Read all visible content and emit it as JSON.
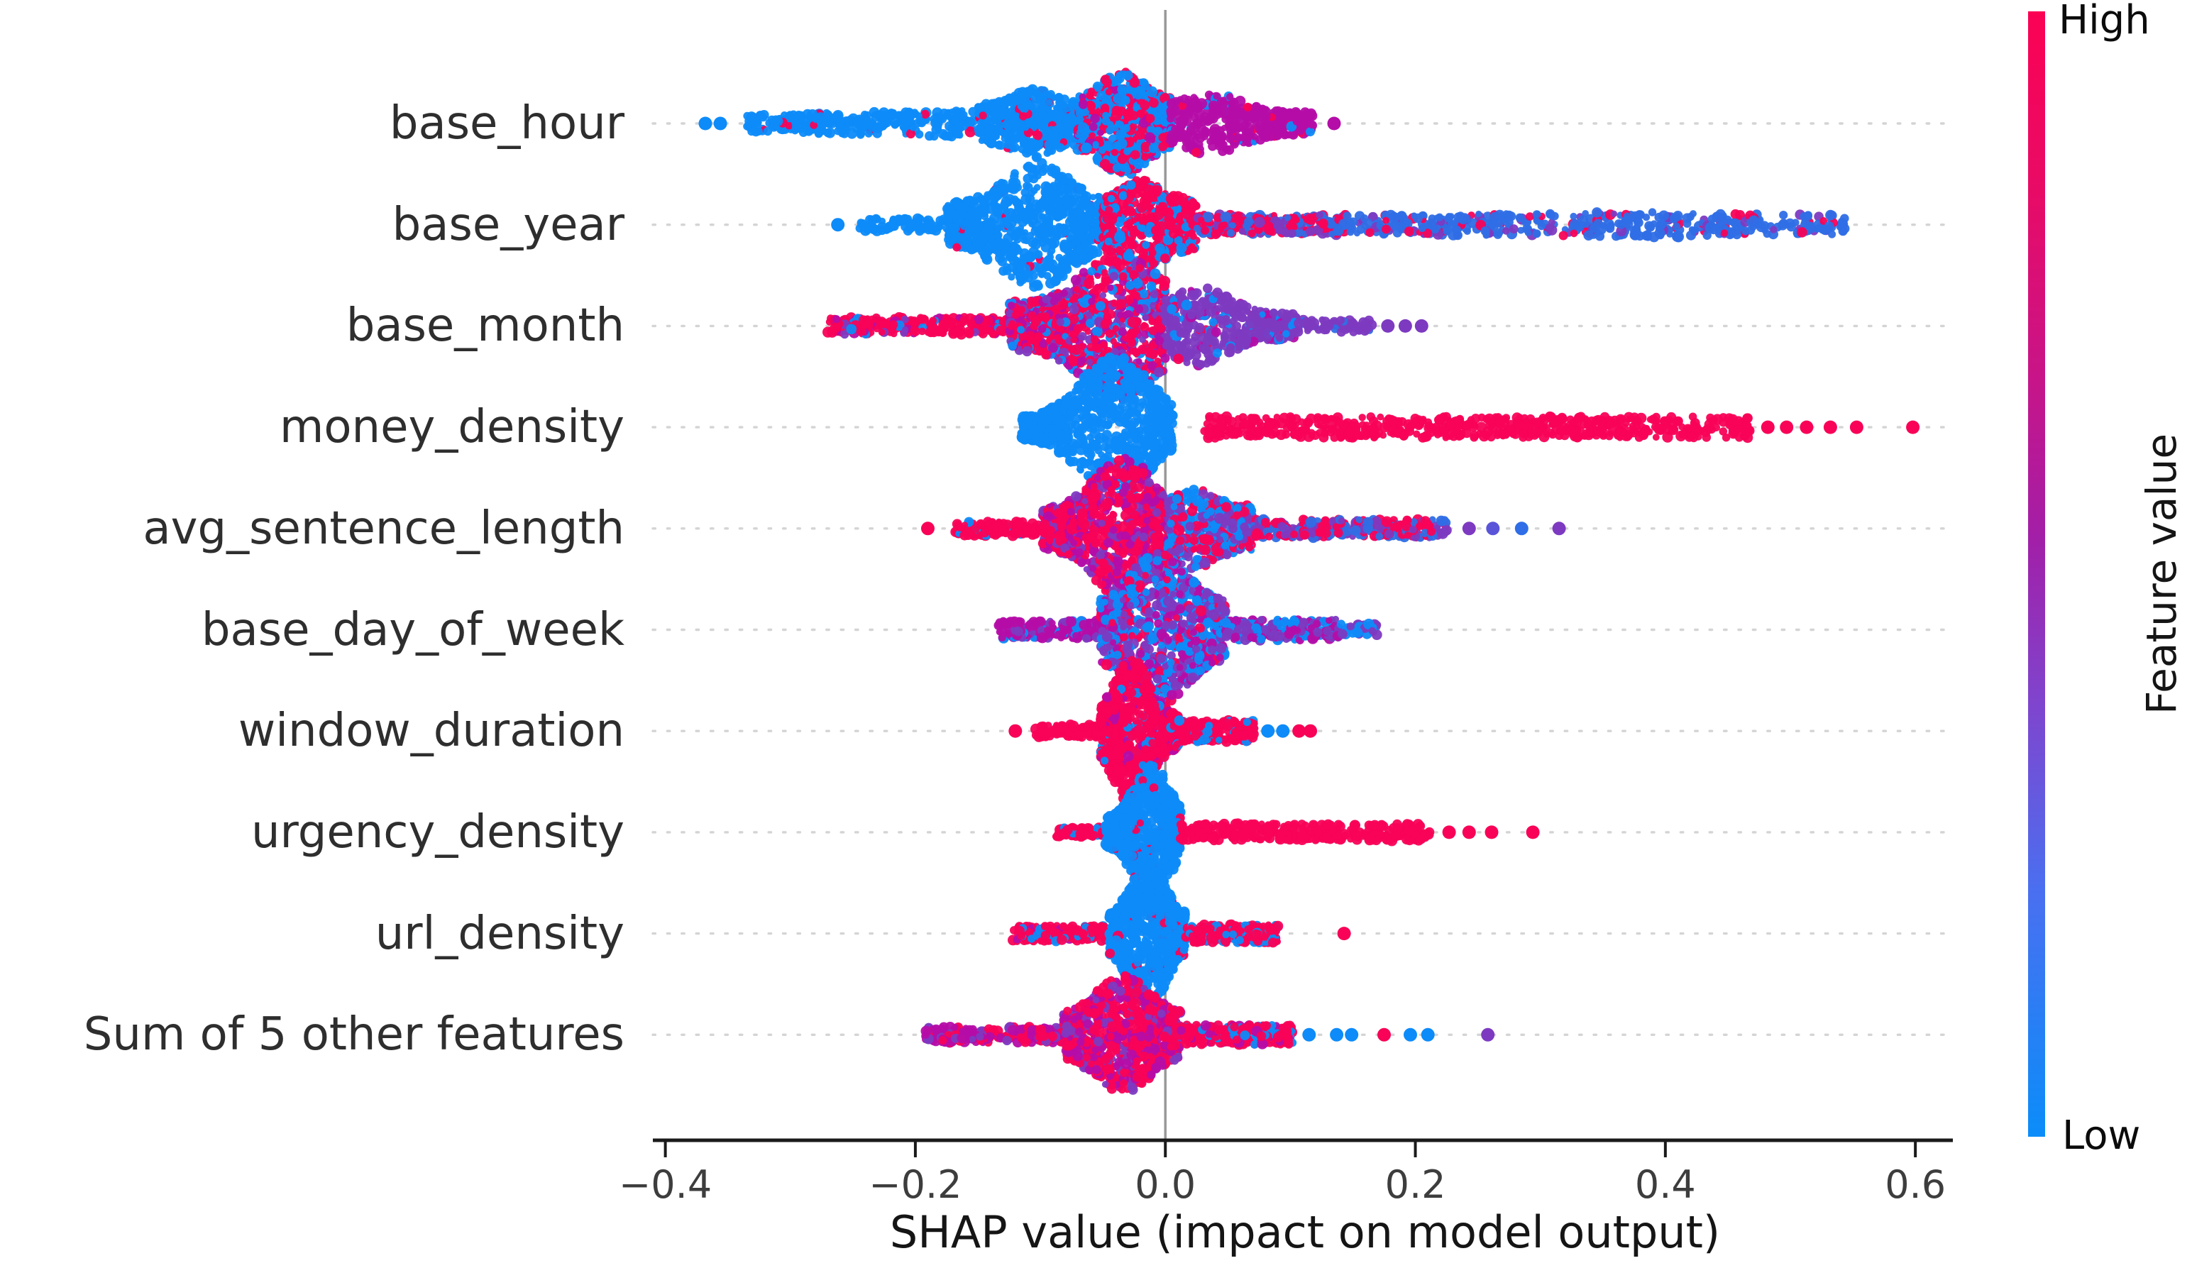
{
  "chart_data": {
    "type": "beeswarm",
    "variant": "shap-summary-plot",
    "title": "",
    "xlabel": "SHAP value (impact on model output)",
    "xlim": [
      -0.41,
      0.63
    ],
    "x_ticks": [
      -0.4,
      -0.2,
      0.0,
      0.2,
      0.4,
      0.6
    ],
    "x_tick_labels": [
      "−0.4",
      "−0.2",
      "0.0",
      "0.2",
      "0.4",
      "0.6"
    ],
    "zero_reference_line": 0.0,
    "grid": "dotted-horizontal",
    "legend_position": "colorbar-right",
    "colorbar": {
      "high_label": "High",
      "low_label": "Low",
      "title": "Feature value",
      "gradient": [
        [
          "0%",
          "#fb0254"
        ],
        [
          "16%",
          "#e80b66"
        ],
        [
          "32%",
          "#c91487"
        ],
        [
          "47%",
          "#a21fa8"
        ],
        [
          "62%",
          "#7e46cf"
        ],
        [
          "78%",
          "#4a6ff0"
        ],
        [
          "100%",
          "#0b8df9"
        ]
      ]
    },
    "palette": {
      "blue": "#0d8bf9",
      "royal": "#2f6ee6",
      "slate": "#5a55d8",
      "violet": "#7d3ac1",
      "magenta": "#b50da8",
      "red": "#f80357"
    },
    "grid_color": "#d4d4d4",
    "zero_line_color": "#999999",
    "axis_color": "#1a1a1a",
    "features": [
      {
        "name": "base_hour",
        "shap_range": [
          -0.37,
          0.14
        ],
        "segments": [
          {
            "from": -0.335,
            "to": -0.15,
            "base": 12,
            "base_end": 20,
            "n": 300,
            "colors": {
              "blue": 0.98,
              "red": 0.02
            }
          },
          {
            "from": -0.15,
            "to": -0.07,
            "base": 26,
            "peak": -0.105,
            "max": 48,
            "n": 450,
            "colors": {
              "blue": 0.93,
              "red": 0.07
            }
          },
          {
            "from": -0.07,
            "to": 0.004,
            "base": 34,
            "peak": -0.034,
            "max": 74,
            "n": 650,
            "colors": {
              "blue": 0.52,
              "red": 0.42,
              "magenta": 0.06
            }
          },
          {
            "from": 0.004,
            "to": 0.118,
            "base": 16,
            "peak": 0.035,
            "max": 44,
            "n": 420,
            "colors": {
              "magenta": 0.93,
              "blue": 0.03,
              "red": 0.04
            }
          }
        ],
        "dots": [
          {
            "x": -0.368,
            "color": "blue"
          },
          {
            "x": -0.356,
            "color": "blue"
          },
          {
            "x": 0.135,
            "color": "magenta"
          }
        ]
      },
      {
        "name": "base_year",
        "shap_range": [
          -0.26,
          0.55
        ],
        "segments": [
          {
            "from": -0.245,
            "to": -0.175,
            "base": 9,
            "n": 70,
            "colors": {
              "blue": 1
            }
          },
          {
            "from": -0.175,
            "to": -0.05,
            "base": 28,
            "peak": -0.103,
            "max": 88,
            "n": 750,
            "colors": {
              "blue": 0.97,
              "red": 0.03
            }
          },
          {
            "from": -0.05,
            "to": 0.025,
            "base": 34,
            "peak": -0.018,
            "max": 64,
            "n": 520,
            "colors": {
              "red": 0.72,
              "blue": 0.28
            }
          },
          {
            "from": 0.025,
            "to": 0.145,
            "base": 14,
            "n": 260,
            "colors": {
              "red": 0.5,
              "royal": 0.3,
              "violet": 0.2
            }
          },
          {
            "from": 0.145,
            "to": 0.545,
            "base": 13,
            "peak": 0.36,
            "max": 18,
            "n": 460,
            "colors": {
              "royal": 0.8,
              "violet": 0.1,
              "red": 0.1
            }
          }
        ],
        "dots": [
          {
            "x": -0.262,
            "color": "blue"
          }
        ]
      },
      {
        "name": "base_month",
        "shap_range": [
          -0.27,
          0.21
        ],
        "segments": [
          {
            "from": -0.27,
            "to": -0.125,
            "base": 12,
            "n": 240,
            "colors": {
              "red": 0.78,
              "magenta": 0.1,
              "violet": 0.06,
              "blue": 0.06
            }
          },
          {
            "from": -0.125,
            "to": 0.0,
            "base": 34,
            "peak": -0.037,
            "max": 106,
            "n": 900,
            "colors": {
              "red": 0.42,
              "magenta": 0.18,
              "blue": 0.22,
              "violet": 0.18
            }
          },
          {
            "from": 0.0,
            "to": 0.105,
            "base": 18,
            "peak": 0.028,
            "max": 56,
            "n": 430,
            "colors": {
              "violet": 0.84,
              "blue": 0.08,
              "magenta": 0.05,
              "red": 0.03
            }
          },
          {
            "from": 0.105,
            "to": 0.165,
            "base": 9,
            "n": 60,
            "colors": {
              "violet": 0.85,
              "royal": 0.15
            }
          }
        ],
        "dots": [
          {
            "x": 0.178,
            "color": "violet"
          },
          {
            "x": 0.192,
            "color": "violet"
          },
          {
            "x": 0.205,
            "color": "violet"
          }
        ]
      },
      {
        "name": "money_density",
        "shap_range": [
          -0.11,
          0.6
        ],
        "segments": [
          {
            "from": -0.115,
            "to": 0.006,
            "base": 15,
            "peak": -0.04,
            "max": 100,
            "n": 780,
            "colors": {
              "blue": 1
            }
          },
          {
            "from": 0.03,
            "to": 0.468,
            "base": 15,
            "n": 580,
            "colors": {
              "red": 1
            }
          }
        ],
        "dots": [
          {
            "x": 0.482,
            "color": "red"
          },
          {
            "x": 0.497,
            "color": "red"
          },
          {
            "x": 0.513,
            "color": "red"
          },
          {
            "x": 0.532,
            "color": "red"
          },
          {
            "x": 0.553,
            "color": "red"
          },
          {
            "x": 0.598,
            "color": "red"
          }
        ]
      },
      {
        "name": "avg_sentence_length",
        "shap_range": [
          -0.19,
          0.32
        ],
        "segments": [
          {
            "from": -0.168,
            "to": -0.098,
            "base": 10,
            "n": 110,
            "colors": {
              "red": 0.95,
              "blue": 0.05
            }
          },
          {
            "from": -0.098,
            "to": 0.002,
            "base": 28,
            "peak": -0.034,
            "max": 102,
            "n": 830,
            "colors": {
              "red": 0.58,
              "magenta": 0.26,
              "violet": 0.16
            }
          },
          {
            "from": 0.002,
            "to": 0.07,
            "base": 32,
            "peak": 0.022,
            "max": 58,
            "n": 430,
            "colors": {
              "blue": 0.42,
              "red": 0.3,
              "violet": 0.28
            }
          },
          {
            "from": 0.07,
            "to": 0.225,
            "base": 13,
            "n": 270,
            "colors": {
              "red": 0.42,
              "royal": 0.28,
              "violet": 0.3
            }
          }
        ],
        "dots": [
          {
            "x": -0.19,
            "color": "red"
          },
          {
            "x": 0.243,
            "color": "violet"
          },
          {
            "x": 0.262,
            "color": "slate"
          },
          {
            "x": 0.285,
            "color": "royal"
          },
          {
            "x": 0.315,
            "color": "violet"
          }
        ]
      },
      {
        "name": "base_day_of_week",
        "shap_range": [
          -0.13,
          0.17
        ],
        "segments": [
          {
            "from": -0.135,
            "to": -0.052,
            "base": 13,
            "n": 190,
            "colors": {
              "magenta": 0.72,
              "violet": 0.16,
              "blue": 0.12
            }
          },
          {
            "from": -0.052,
            "to": 0.048,
            "base": 38,
            "peak": -0.006,
            "max": 108,
            "n": 880,
            "colors": {
              "blue": 0.38,
              "violet": 0.28,
              "magenta": 0.22,
              "red": 0.12
            }
          },
          {
            "from": 0.048,
            "to": 0.14,
            "base": 15,
            "n": 250,
            "colors": {
              "magenta": 0.4,
              "blue": 0.34,
              "violet": 0.26
            }
          },
          {
            "from": 0.14,
            "to": 0.172,
            "base": 8,
            "n": 40,
            "colors": {
              "blue": 0.55,
              "violet": 0.45
            }
          }
        ],
        "dots": []
      },
      {
        "name": "window_duration",
        "shap_range": [
          -0.12,
          0.12
        ],
        "segments": [
          {
            "from": -0.104,
            "to": -0.052,
            "base": 9,
            "n": 90,
            "colors": {
              "red": 1
            }
          },
          {
            "from": -0.052,
            "to": 0.01,
            "base": 22,
            "peak": -0.027,
            "max": 103,
            "n": 760,
            "colors": {
              "red": 0.86,
              "magenta": 0.09,
              "blue": 0.05
            }
          },
          {
            "from": 0.01,
            "to": 0.072,
            "base": 15,
            "n": 220,
            "colors": {
              "red": 0.78,
              "blue": 0.22
            }
          }
        ],
        "dots": [
          {
            "x": -0.12,
            "color": "red"
          },
          {
            "x": 0.082,
            "color": "blue"
          },
          {
            "x": 0.094,
            "color": "blue"
          },
          {
            "x": 0.107,
            "color": "red"
          },
          {
            "x": 0.116,
            "color": "red"
          }
        ]
      },
      {
        "name": "urgency_density",
        "shap_range": [
          -0.09,
          0.3
        ],
        "segments": [
          {
            "from": -0.088,
            "to": -0.048,
            "base": 7,
            "n": 60,
            "colors": {
              "red": 0.9,
              "blue": 0.1
            }
          },
          {
            "from": -0.048,
            "to": 0.012,
            "base": 20,
            "peak": -0.011,
            "max": 96,
            "n": 720,
            "colors": {
              "blue": 0.97,
              "red": 0.03
            }
          },
          {
            "from": 0.012,
            "to": 0.212,
            "base": 12,
            "n": 320,
            "colors": {
              "red": 1
            }
          }
        ],
        "dots": [
          {
            "x": 0.227,
            "color": "red"
          },
          {
            "x": 0.243,
            "color": "red"
          },
          {
            "x": 0.261,
            "color": "red"
          },
          {
            "x": 0.294,
            "color": "red"
          }
        ]
      },
      {
        "name": "url_density",
        "shap_range": [
          -0.12,
          0.15
        ],
        "segments": [
          {
            "from": -0.122,
            "to": -0.045,
            "base": 11,
            "n": 170,
            "colors": {
              "red": 0.82,
              "blue": 0.12,
              "magenta": 0.06
            }
          },
          {
            "from": -0.045,
            "to": 0.016,
            "base": 22,
            "peak": -0.014,
            "max": 108,
            "n": 760,
            "colors": {
              "blue": 0.96,
              "red": 0.04
            }
          },
          {
            "from": 0.016,
            "to": 0.09,
            "base": 13,
            "n": 220,
            "colors": {
              "red": 0.72,
              "blue": 0.28
            }
          }
        ],
        "dots": [
          {
            "x": 0.143,
            "color": "red"
          }
        ]
      },
      {
        "name": "Sum of 5 other features",
        "shap_range": [
          -0.19,
          0.26
        ],
        "segments": [
          {
            "from": -0.192,
            "to": -0.082,
            "base": 11,
            "n": 210,
            "colors": {
              "magenta": 0.48,
              "red": 0.36,
              "violet": 0.16
            }
          },
          {
            "from": -0.082,
            "to": 0.012,
            "base": 28,
            "peak": -0.034,
            "max": 84,
            "n": 760,
            "colors": {
              "red": 0.58,
              "magenta": 0.3,
              "violet": 0.12
            }
          },
          {
            "from": 0.012,
            "to": 0.102,
            "base": 14,
            "n": 270,
            "colors": {
              "red": 0.68,
              "magenta": 0.14,
              "blue": 0.18
            }
          }
        ],
        "dots": [
          {
            "x": 0.115,
            "color": "blue"
          },
          {
            "x": 0.137,
            "color": "blue"
          },
          {
            "x": 0.149,
            "color": "blue"
          },
          {
            "x": 0.175,
            "color": "red"
          },
          {
            "x": 0.196,
            "color": "blue"
          },
          {
            "x": 0.21,
            "color": "blue"
          },
          {
            "x": 0.258,
            "color": "violet"
          }
        ]
      }
    ]
  }
}
